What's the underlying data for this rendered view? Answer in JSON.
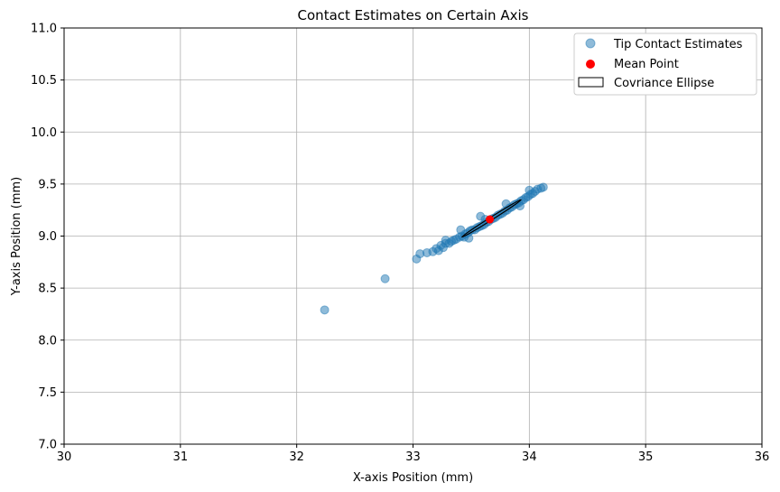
{
  "chart_data": {
    "type": "scatter",
    "title": "Contact Estimates on Certain Axis",
    "xlabel": "X-axis Position (mm)",
    "ylabel": "Y-axis Position (mm)",
    "xlim": [
      30,
      36
    ],
    "ylim": [
      7,
      11
    ],
    "xticks": [
      30,
      31,
      32,
      33,
      34,
      35,
      36
    ],
    "yticks": [
      7.0,
      7.5,
      8.0,
      8.5,
      9.0,
      9.5,
      10.0,
      10.5,
      11.0
    ],
    "xtick_labels": [
      "30",
      "31",
      "32",
      "33",
      "34",
      "35",
      "36"
    ],
    "ytick_labels": [
      "7.0",
      "7.5",
      "8.0",
      "8.5",
      "9.0",
      "9.5",
      "10.0",
      "10.5",
      "11.0"
    ],
    "grid": true,
    "legend_position": "top-right",
    "series": [
      {
        "name": "Tip Contact Estimates",
        "color": "#1f77b4",
        "alpha": 0.5,
        "points": [
          [
            32.24,
            8.29
          ],
          [
            32.76,
            8.59
          ],
          [
            33.03,
            8.78
          ],
          [
            33.06,
            8.83
          ],
          [
            33.12,
            8.84
          ],
          [
            33.17,
            8.85
          ],
          [
            33.2,
            8.88
          ],
          [
            33.22,
            8.86
          ],
          [
            33.24,
            8.91
          ],
          [
            33.26,
            8.89
          ],
          [
            33.28,
            8.93
          ],
          [
            33.28,
            8.96
          ],
          [
            33.31,
            8.93
          ],
          [
            33.33,
            8.95
          ],
          [
            33.35,
            8.96
          ],
          [
            33.37,
            8.97
          ],
          [
            33.4,
            8.99
          ],
          [
            33.42,
            9.0
          ],
          [
            33.44,
            8.99
          ],
          [
            33.45,
            9.02
          ],
          [
            33.47,
            9.03
          ],
          [
            33.49,
            9.05
          ],
          [
            33.51,
            9.06
          ],
          [
            33.53,
            9.06
          ],
          [
            33.55,
            9.08
          ],
          [
            33.57,
            9.09
          ],
          [
            33.59,
            9.1
          ],
          [
            33.61,
            9.11
          ],
          [
            33.63,
            9.13
          ],
          [
            33.65,
            9.14
          ],
          [
            33.67,
            9.16
          ],
          [
            33.69,
            9.17
          ],
          [
            33.71,
            9.18
          ],
          [
            33.73,
            9.2
          ],
          [
            33.75,
            9.21
          ],
          [
            33.77,
            9.22
          ],
          [
            33.79,
            9.24
          ],
          [
            33.81,
            9.25
          ],
          [
            33.83,
            9.27
          ],
          [
            33.85,
            9.28
          ],
          [
            33.87,
            9.3
          ],
          [
            33.89,
            9.31
          ],
          [
            33.91,
            9.32
          ],
          [
            33.93,
            9.34
          ],
          [
            33.95,
            9.35
          ],
          [
            33.97,
            9.37
          ],
          [
            33.99,
            9.38
          ],
          [
            34.01,
            9.4
          ],
          [
            34.03,
            9.41
          ],
          [
            34.05,
            9.43
          ],
          [
            34.07,
            9.45
          ],
          [
            34.1,
            9.46
          ],
          [
            34.12,
            9.47
          ],
          [
            33.41,
            9.06
          ],
          [
            33.58,
            9.19
          ],
          [
            33.48,
            8.98
          ],
          [
            33.62,
            9.16
          ],
          [
            33.8,
            9.31
          ],
          [
            33.92,
            9.29
          ],
          [
            34.0,
            9.44
          ]
        ]
      },
      {
        "name": "Mean Point",
        "color": "#ff0000",
        "points": [
          [
            33.66,
            9.16
          ]
        ]
      }
    ],
    "ellipse": {
      "name": "Covriance Ellipse",
      "center": [
        33.66,
        9.16
      ],
      "endpoint_a": [
        33.42,
        8.99
      ],
      "endpoint_b": [
        33.93,
        9.35
      ],
      "minor_half_width": 0.012,
      "edge_color": "#000000"
    }
  }
}
